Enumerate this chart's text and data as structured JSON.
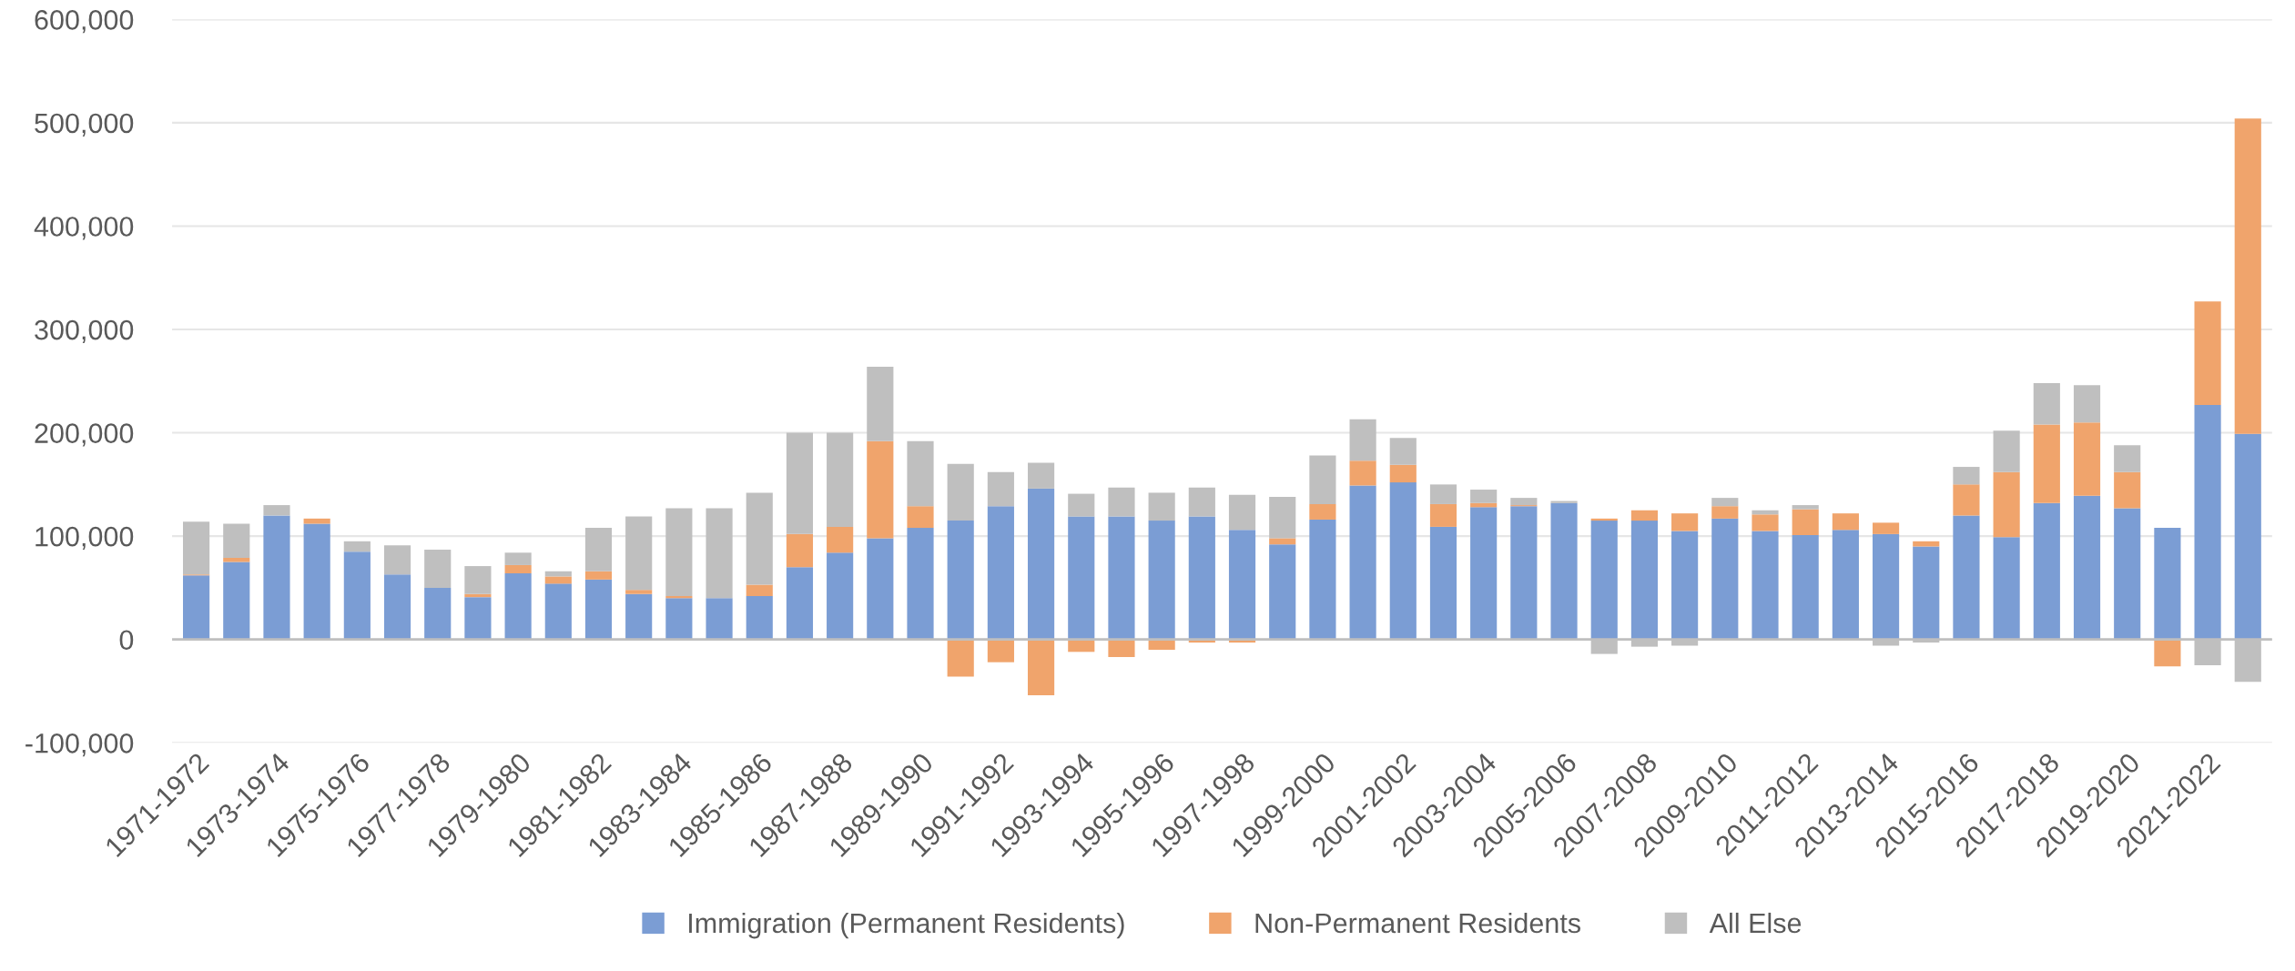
{
  "chart_data": {
    "type": "bar",
    "stacked": true,
    "categories": [
      "1971-1972",
      null,
      "1973-1974",
      null,
      "1975-1976",
      null,
      "1977-1978",
      null,
      "1979-1980",
      null,
      "1981-1982",
      null,
      "1983-1984",
      null,
      "1985-1986",
      null,
      "1987-1988",
      null,
      "1989-1990",
      null,
      "1991-1992",
      null,
      "1993-1994",
      null,
      "1995-1996",
      null,
      "1997-1998",
      null,
      "1999-2000",
      null,
      "2001-2002",
      null,
      "2003-2004",
      null,
      "2005-2006",
      null,
      "2007-2008",
      null,
      "2009-2010",
      null,
      "2011-2012",
      null,
      "2013-2014",
      null,
      "2015-2016",
      null,
      "2017-2018",
      null,
      "2019-2020",
      null,
      "2021-2022",
      null
    ],
    "series": [
      {
        "name": "Immigration (Permanent Residents)",
        "color": "#7b9dd4",
        "values": [
          62000,
          75000,
          120000,
          112000,
          85000,
          63000,
          50000,
          41000,
          64000,
          54000,
          58000,
          44000,
          40000,
          40000,
          42000,
          70000,
          84000,
          98000,
          108000,
          115000,
          129000,
          146000,
          119000,
          119000,
          115000,
          119000,
          106000,
          92000,
          116000,
          149000,
          152000,
          109000,
          128000,
          129000,
          132000,
          115000,
          115000,
          105000,
          117000,
          105000,
          101000,
          106000,
          102000,
          90000,
          120000,
          99000,
          132000,
          139000,
          127000,
          108000,
          227000,
          199000
        ]
      },
      {
        "name": "Non-Permanent Residents",
        "color": "#f0a46c",
        "values": [
          1000,
          4000,
          null,
          5000,
          null,
          null,
          null,
          3000,
          8000,
          7000,
          8000,
          4000,
          2000,
          null,
          11000,
          32000,
          25000,
          94000,
          21000,
          -36000,
          -22000,
          -54000,
          -12000,
          -17000,
          -10000,
          -3000,
          -3000,
          6000,
          15000,
          24000,
          17000,
          22000,
          4000,
          1000,
          null,
          2000,
          10000,
          17000,
          12000,
          16000,
          25000,
          16000,
          11000,
          5000,
          30000,
          63000,
          76000,
          71000,
          35000,
          -26000,
          100000,
          305000
        ]
      },
      {
        "name": "All Else",
        "color": "#bfbfbf",
        "values": [
          51000,
          33000,
          10000,
          null,
          10000,
          28000,
          37000,
          27000,
          12000,
          5000,
          42000,
          71000,
          85000,
          87000,
          89000,
          98000,
          91000,
          72000,
          63000,
          55000,
          33000,
          25000,
          22000,
          28000,
          27000,
          28000,
          34000,
          40000,
          47000,
          40000,
          26000,
          19000,
          13000,
          7000,
          2000,
          -14000,
          -7000,
          -6000,
          8000,
          4000,
          4000,
          null,
          -6000,
          -3000,
          17000,
          40000,
          40000,
          36000,
          26000,
          null,
          -25000,
          -41000
        ]
      }
    ],
    "ylim": [
      -100000,
      600000
    ],
    "yticks": [
      {
        "value": -100000,
        "label": "-100,000"
      },
      {
        "value": 0,
        "label": "0"
      },
      {
        "value": 100000,
        "label": "100,000"
      },
      {
        "value": 200000,
        "label": "200,000"
      },
      {
        "value": 300000,
        "label": "300,000"
      },
      {
        "value": 400000,
        "label": "400,000"
      },
      {
        "value": 500000,
        "label": "500,000"
      },
      {
        "value": 600000,
        "label": "600,000"
      }
    ],
    "grid": "y",
    "legend": "bottom"
  }
}
